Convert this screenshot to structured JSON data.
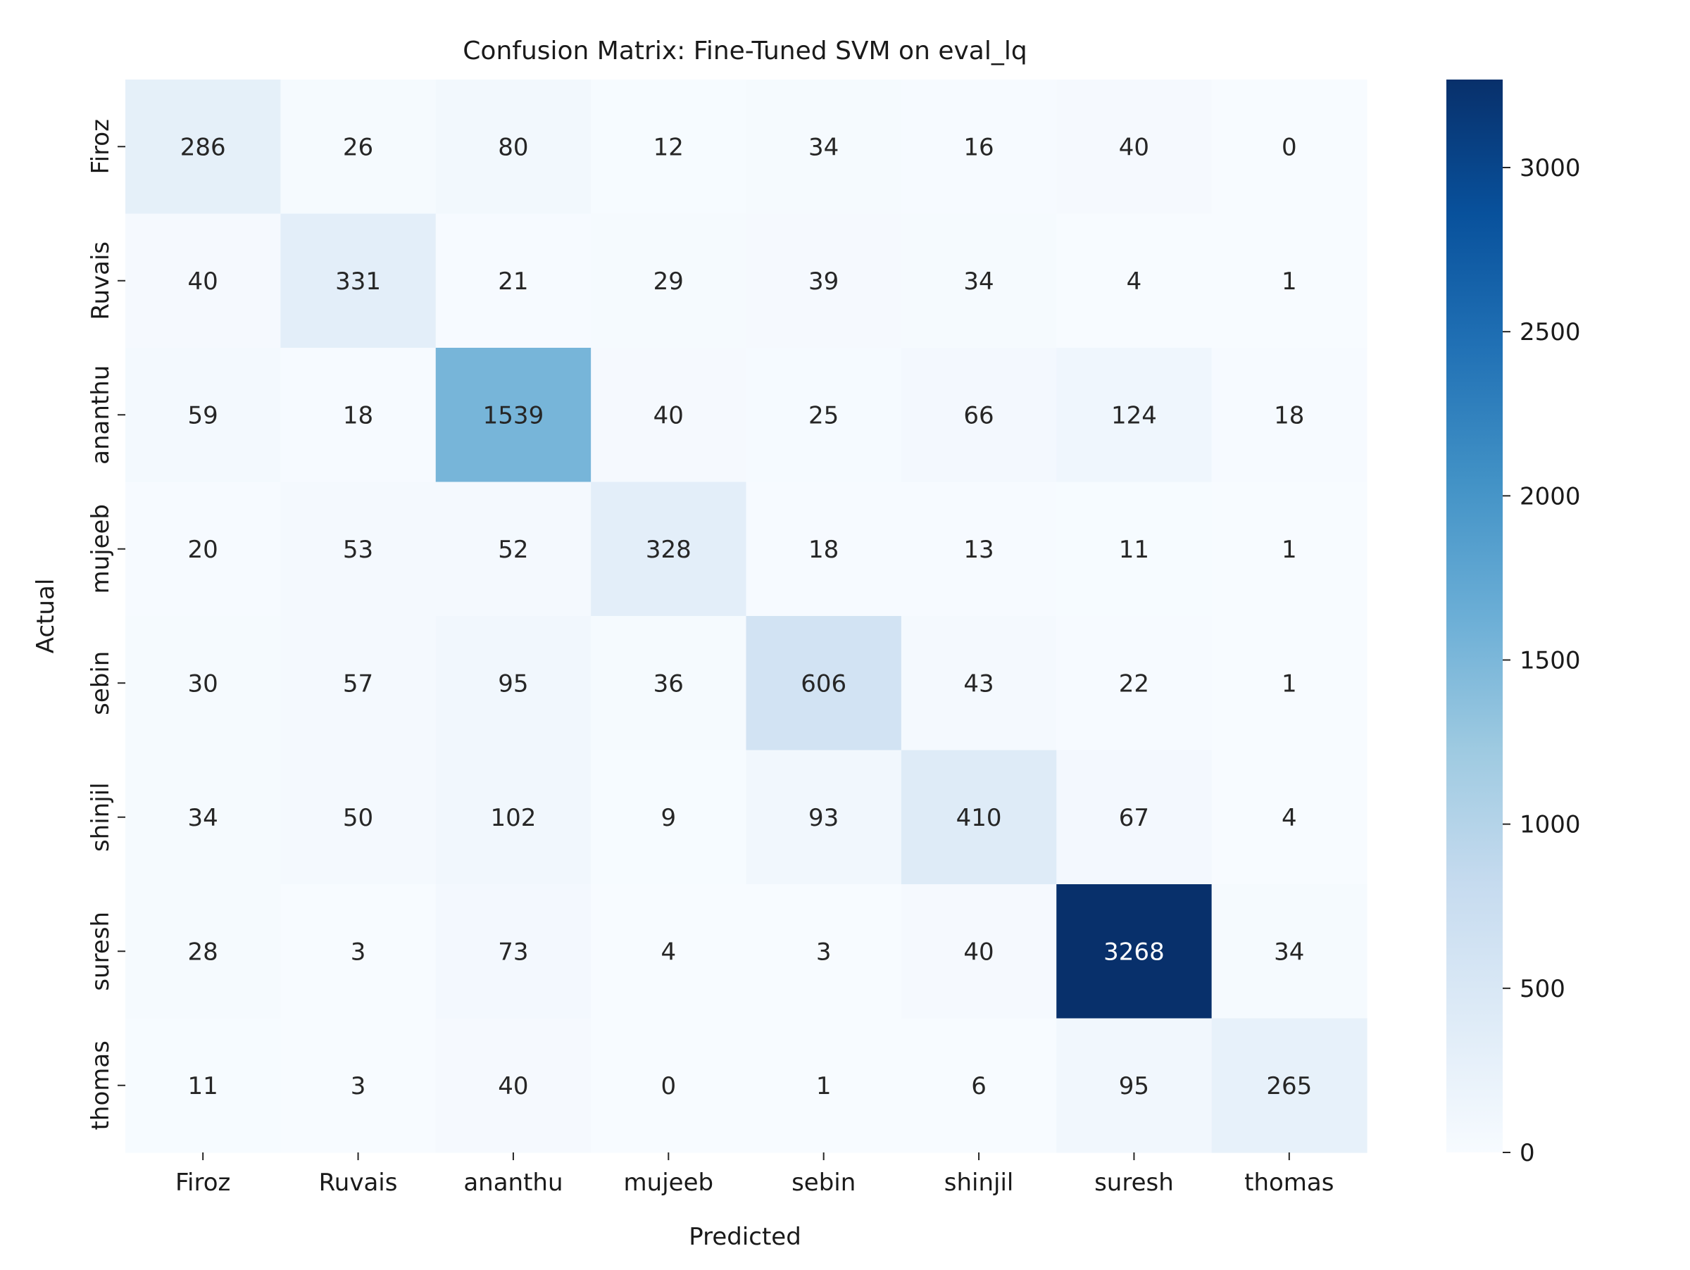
{
  "chart_data": {
    "type": "heatmap",
    "title": "Confusion Matrix: Fine-Tuned SVM on eval_lq",
    "xlabel": "Predicted",
    "ylabel": "Actual",
    "x_categories": [
      "Firoz",
      "Ruvais",
      "ananthu",
      "mujeeb",
      "sebin",
      "shinjil",
      "suresh",
      "thomas"
    ],
    "y_categories": [
      "Firoz",
      "Ruvais",
      "ananthu",
      "mujeeb",
      "sebin",
      "shinjil",
      "suresh",
      "thomas"
    ],
    "values": [
      [
        286,
        26,
        80,
        12,
        34,
        16,
        40,
        0
      ],
      [
        40,
        331,
        21,
        29,
        39,
        34,
        4,
        1
      ],
      [
        59,
        18,
        1539,
        40,
        25,
        66,
        124,
        18
      ],
      [
        20,
        53,
        52,
        328,
        18,
        13,
        11,
        1
      ],
      [
        30,
        57,
        95,
        36,
        606,
        43,
        22,
        1
      ],
      [
        34,
        50,
        102,
        9,
        93,
        410,
        67,
        4
      ],
      [
        28,
        3,
        73,
        4,
        3,
        40,
        3268,
        34
      ],
      [
        11,
        3,
        40,
        0,
        1,
        6,
        95,
        265
      ]
    ],
    "colormap": "Blues",
    "value_range": [
      0,
      3268
    ],
    "colorbar": {
      "ticks": [
        0,
        500,
        1000,
        1500,
        2000,
        2500,
        3000
      ],
      "tick_labels": [
        "0",
        "500",
        "1000",
        "1500",
        "2000",
        "2500",
        "3000"
      ],
      "position": "right"
    },
    "annotations": true,
    "grid": false
  }
}
